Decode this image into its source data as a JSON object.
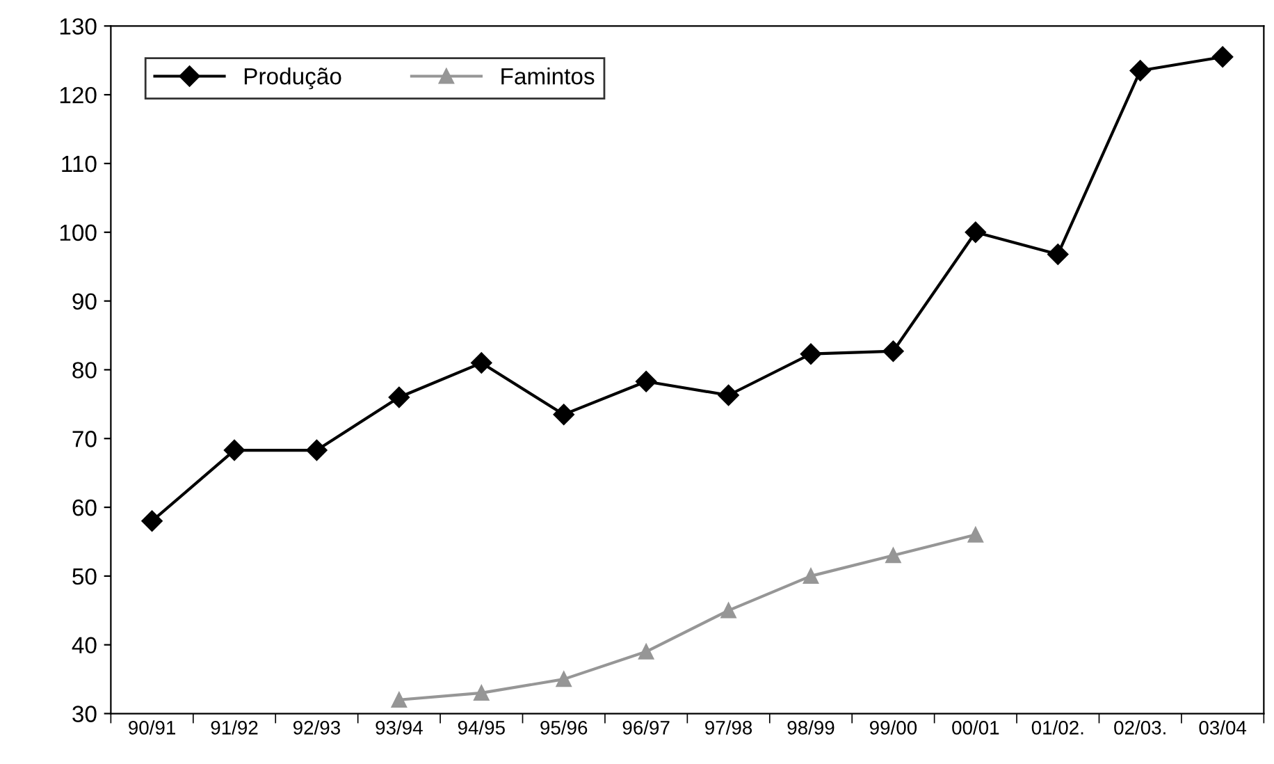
{
  "chart_data": {
    "type": "line",
    "categories": [
      "90/91",
      "91/92",
      "92/93",
      "93/94",
      "94/95",
      "95/96",
      "96/97",
      "97/98",
      "98/99",
      "99/00",
      "00/01",
      "01/02.",
      "02/03.",
      "03/04"
    ],
    "series": [
      {
        "name": "Produção",
        "color": "#000000",
        "marker": "diamond",
        "values": [
          58,
          68.3,
          68.3,
          76,
          81,
          73.5,
          78.3,
          76.3,
          82.3,
          82.7,
          100,
          96.8,
          123.5,
          125.5
        ]
      },
      {
        "name": "Famintos",
        "color": "#969696",
        "marker": "triangle",
        "values": [
          null,
          null,
          null,
          32,
          33,
          35,
          39,
          45,
          50,
          53,
          56,
          null,
          null,
          null
        ]
      }
    ],
    "ylim": [
      30,
      130
    ],
    "yticks": [
      30,
      40,
      50,
      60,
      70,
      80,
      90,
      100,
      110,
      120,
      130
    ],
    "grid": false,
    "legend": "top left",
    "line_style": "solid"
  }
}
